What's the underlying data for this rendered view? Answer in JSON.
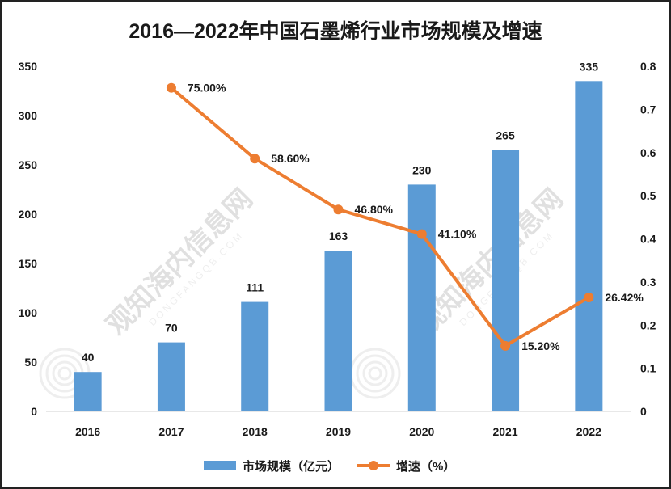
{
  "chart_data": {
    "type": "bar",
    "title": "2016—2022年中国石墨烯行业市场规模及增速",
    "categories": [
      "2016",
      "2017",
      "2018",
      "2019",
      "2020",
      "2021",
      "2022"
    ],
    "series": [
      {
        "name": "市场规模（亿元）",
        "type": "bar",
        "axis": "left",
        "color": "#5B9BD5",
        "values": [
          40,
          70,
          111,
          163,
          230,
          265,
          335
        ],
        "labels": [
          "40",
          "70",
          "111",
          "163",
          "230",
          "265",
          "335"
        ]
      },
      {
        "name": "增速（%）",
        "type": "line",
        "axis": "right",
        "color": "#ED7D31",
        "values": [
          null,
          0.75,
          0.586,
          0.468,
          0.411,
          0.152,
          0.2642
        ],
        "labels": [
          "",
          "75.00%",
          "58.60%",
          "46.80%",
          "41.10%",
          "15.20%",
          "26.42%"
        ]
      }
    ],
    "y_left": {
      "ylim": [
        0,
        350
      ],
      "ticks": [
        "0",
        "50",
        "100",
        "150",
        "200",
        "250",
        "300",
        "350"
      ]
    },
    "y_right": {
      "ylim": [
        0,
        0.8
      ],
      "ticks": [
        "0",
        "0.1",
        "0.2",
        "0.3",
        "0.4",
        "0.5",
        "0.6",
        "0.7",
        "0.8"
      ]
    },
    "grid": false,
    "legend_position": "bottom"
  },
  "watermark": {
    "text": "观知海内信息网",
    "subtext": "DONGFANGQB.COM"
  }
}
